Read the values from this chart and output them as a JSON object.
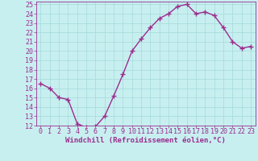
{
  "hours": [
    0,
    1,
    2,
    3,
    4,
    5,
    6,
    7,
    8,
    9,
    10,
    11,
    12,
    13,
    14,
    15,
    16,
    17,
    18,
    19,
    20,
    21,
    22,
    23
  ],
  "values": [
    16.5,
    16.0,
    15.0,
    14.8,
    12.2,
    11.8,
    11.9,
    13.0,
    15.2,
    17.5,
    20.0,
    21.3,
    22.5,
    23.5,
    24.0,
    24.8,
    25.0,
    24.0,
    24.2,
    23.8,
    22.5,
    21.0,
    20.3,
    20.5
  ],
  "line_color": "#9b2d8e",
  "marker": "+",
  "marker_size": 4,
  "marker_linewidth": 1.0,
  "background_color": "#c8eff0",
  "grid_color": "#aadddd",
  "xlabel": "Windchill (Refroidissement éolien,°C)",
  "xlabel_color": "#9b2d8e",
  "tick_color": "#9b2d8e",
  "spine_color": "#9b2d8e",
  "ylim": [
    12,
    25
  ],
  "xlim_min": -0.5,
  "xlim_max": 23.5,
  "yticks": [
    12,
    13,
    14,
    15,
    16,
    17,
    18,
    19,
    20,
    21,
    22,
    23,
    24,
    25
  ],
  "xticks": [
    0,
    1,
    2,
    3,
    4,
    5,
    6,
    7,
    8,
    9,
    10,
    11,
    12,
    13,
    14,
    15,
    16,
    17,
    18,
    19,
    20,
    21,
    22,
    23
  ],
  "line_width": 1.0,
  "tick_fontsize": 6,
  "xlabel_fontsize": 6.5
}
